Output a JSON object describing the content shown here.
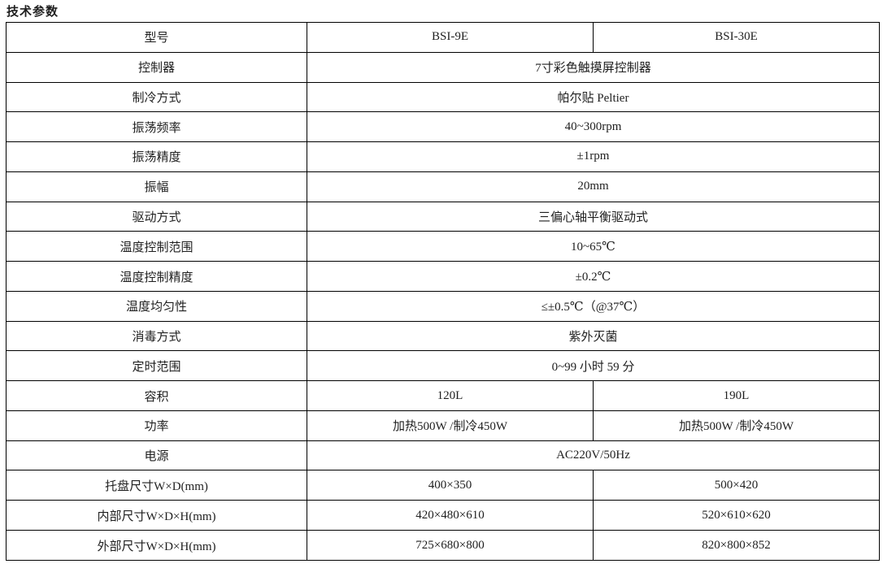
{
  "page_title": "技术参数",
  "colors": {
    "border": "#000000",
    "text": "#1f1f1f",
    "background": "#ffffff"
  },
  "table": {
    "label_column_header": "型号",
    "models": [
      "BSI-9E",
      "BSI-30E"
    ],
    "rows": [
      {
        "label": "型号",
        "values": [
          "BSI-9E",
          "BSI-30E"
        ]
      },
      {
        "label": "控制器",
        "values": [
          "7寸彩色触摸屏控制器"
        ]
      },
      {
        "label": "制冷方式",
        "values": [
          "帕尔贴 Peltier"
        ]
      },
      {
        "label": "振荡频率",
        "values": [
          "40~300rpm"
        ]
      },
      {
        "label": "振荡精度",
        "values": [
          "±1rpm"
        ]
      },
      {
        "label": "振幅",
        "values": [
          "20mm"
        ]
      },
      {
        "label": "驱动方式",
        "values": [
          "三偏心轴平衡驱动式"
        ]
      },
      {
        "label": "温度控制范围",
        "values": [
          "10~65℃"
        ]
      },
      {
        "label": "温度控制精度",
        "values": [
          "±0.2℃"
        ]
      },
      {
        "label": "温度均匀性",
        "values": [
          "≤±0.5℃（@37℃）"
        ]
      },
      {
        "label": "消毒方式",
        "values": [
          "紫外灭菌"
        ]
      },
      {
        "label": "定时范围",
        "values": [
          "0~99 小时 59 分"
        ]
      },
      {
        "label": "容积",
        "values": [
          "120L",
          "190L"
        ]
      },
      {
        "label": "功率",
        "values": [
          "加热500W /制冷450W",
          "加热500W /制冷450W"
        ]
      },
      {
        "label": "电源",
        "values": [
          "AC220V/50Hz"
        ]
      },
      {
        "label": "托盘尺寸W×D(mm)",
        "values": [
          "400×350",
          "500×420"
        ]
      },
      {
        "label": "内部尺寸W×D×H(mm)",
        "values": [
          "420×480×610",
          "520×610×620"
        ]
      },
      {
        "label": "外部尺寸W×D×H(mm)",
        "values": [
          "725×680×800",
          "820×800×852"
        ]
      }
    ]
  }
}
